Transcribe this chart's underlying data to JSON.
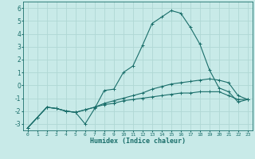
{
  "xlabel": "Humidex (Indice chaleur)",
  "background_color": "#c8eae8",
  "grid_color": "#b0d8d4",
  "line_color": "#1a6e6a",
  "xlim": [
    -0.5,
    23.5
  ],
  "ylim": [
    -3.5,
    6.5
  ],
  "xticks": [
    0,
    1,
    2,
    3,
    4,
    5,
    6,
    7,
    8,
    9,
    10,
    11,
    12,
    13,
    14,
    15,
    16,
    17,
    18,
    19,
    20,
    21,
    22,
    23
  ],
  "yticks": [
    -3,
    -2,
    -1,
    0,
    1,
    2,
    3,
    4,
    5,
    6
  ],
  "series": [
    {
      "x": [
        0,
        1,
        2,
        3,
        4,
        5,
        6,
        7,
        8,
        9,
        10,
        11,
        12,
        13,
        14,
        15,
        16,
        17,
        18,
        19,
        20,
        21,
        22,
        23
      ],
      "y": [
        -3.3,
        -2.5,
        -1.7,
        -1.8,
        -2.0,
        -2.1,
        -3.0,
        -1.8,
        -0.4,
        -0.3,
        1.0,
        1.5,
        3.1,
        4.8,
        5.3,
        5.8,
        5.6,
        4.5,
        3.2,
        1.2,
        -0.2,
        -0.5,
        -1.3,
        -1.1
      ]
    },
    {
      "x": [
        0,
        1,
        2,
        3,
        4,
        5,
        6,
        7,
        8,
        9,
        10,
        11,
        12,
        13,
        14,
        15,
        16,
        17,
        18,
        19,
        20,
        21,
        22,
        23
      ],
      "y": [
        -3.3,
        -2.5,
        -1.7,
        -1.8,
        -2.0,
        -2.1,
        -1.9,
        -1.7,
        -1.5,
        -1.4,
        -1.2,
        -1.1,
        -1.0,
        -0.9,
        -0.8,
        -0.7,
        -0.6,
        -0.6,
        -0.5,
        -0.5,
        -0.5,
        -0.8,
        -1.1,
        -1.1
      ]
    },
    {
      "x": [
        0,
        1,
        2,
        3,
        4,
        5,
        6,
        7,
        8,
        9,
        10,
        11,
        12,
        13,
        14,
        15,
        16,
        17,
        18,
        19,
        20,
        21,
        22,
        23
      ],
      "y": [
        -3.3,
        -2.5,
        -1.7,
        -1.8,
        -2.0,
        -2.1,
        -1.9,
        -1.7,
        -1.4,
        -1.2,
        -1.0,
        -0.8,
        -0.6,
        -0.3,
        -0.1,
        0.1,
        0.2,
        0.3,
        0.4,
        0.5,
        0.4,
        0.2,
        -0.8,
        -1.1
      ]
    }
  ]
}
